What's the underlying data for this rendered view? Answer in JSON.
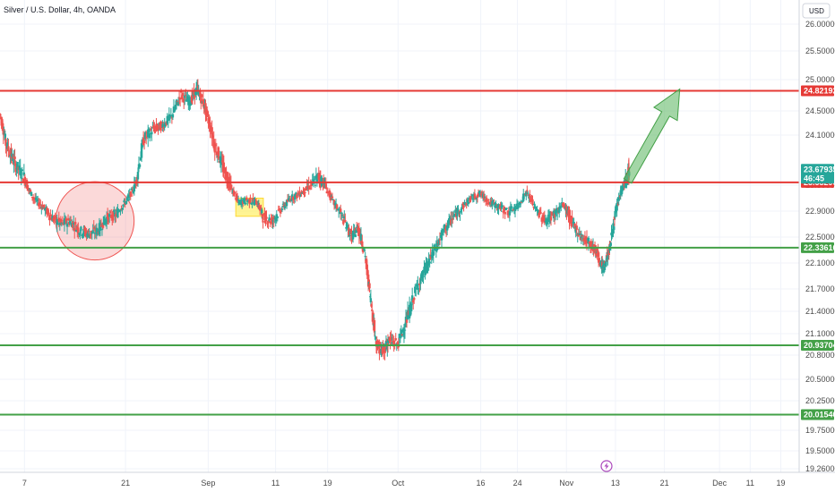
{
  "chart_data": {
    "type": "candlestick",
    "title": "Silver / U.S. Dollar, 4h, OANDA",
    "currency": "USD",
    "ylim": [
      19.1,
      26.3
    ],
    "y_ticks": [
      "26.00000",
      "25.50000",
      "25.00000",
      "24.50000",
      "24.10000",
      "23.50000",
      "22.90000",
      "22.50000",
      "22.10000",
      "21.70000",
      "21.40000",
      "21.10000",
      "20.80000",
      "20.50000",
      "20.25000",
      "19.75000",
      "19.50000",
      "19.26000"
    ],
    "y_tick_values": [
      26.0,
      25.5,
      25.0,
      24.5,
      24.1,
      23.5,
      22.9,
      22.5,
      22.1,
      21.7,
      21.4,
      21.1,
      20.8,
      20.5,
      20.25,
      19.75,
      19.5,
      19.26
    ],
    "x_ticks": [
      "7",
      "21",
      "Sep",
      "11",
      "19",
      "Oct",
      "16",
      "24",
      "Nov",
      "13",
      "21",
      "Dec",
      "11",
      "19"
    ],
    "x_tick_positions": [
      0.3,
      3.6,
      6.3,
      8.5,
      10.2,
      12.5,
      15.2,
      16.4,
      18.0,
      19.6,
      21.2,
      23.0,
      24.0,
      25.0
    ],
    "x_range": [
      -0.5,
      25.6
    ],
    "horizontal_levels": [
      {
        "value": 24.82192,
        "label": "24.82192",
        "color": "#e53935"
      },
      {
        "value": 23.53296,
        "label": "23.53296",
        "color": "#e53935"
      },
      {
        "value": 22.33616,
        "label": "22.33616",
        "color": "#43a047"
      },
      {
        "value": 20.93704,
        "label": "20.93704",
        "color": "#43a047"
      },
      {
        "value": 20.0154,
        "label": "20.01540",
        "color": "#43a047"
      }
    ],
    "last_price": {
      "value": 23.67935,
      "label": "23.67935",
      "countdown": "46:45",
      "color": "#26a69a"
    },
    "price_path": [
      [
        -0.5,
        24.45
      ],
      [
        -0.3,
        24.0
      ],
      [
        0.0,
        23.75
      ],
      [
        0.3,
        23.6
      ],
      [
        0.6,
        23.2
      ],
      [
        0.9,
        23.0
      ],
      [
        1.2,
        22.8
      ],
      [
        1.5,
        22.7
      ],
      [
        1.8,
        22.75
      ],
      [
        2.1,
        22.6
      ],
      [
        2.4,
        22.55
      ],
      [
        2.7,
        22.6
      ],
      [
        3.0,
        22.8
      ],
      [
        3.3,
        22.85
      ],
      [
        3.6,
        23.1
      ],
      [
        3.9,
        23.45
      ],
      [
        4.2,
        24.05
      ],
      [
        4.5,
        24.2
      ],
      [
        4.8,
        24.25
      ],
      [
        5.1,
        24.4
      ],
      [
        5.4,
        24.75
      ],
      [
        5.7,
        24.65
      ],
      [
        5.95,
        24.85
      ],
      [
        6.2,
        24.55
      ],
      [
        6.5,
        24.0
      ],
      [
        6.8,
        23.7
      ],
      [
        7.0,
        23.5
      ],
      [
        7.3,
        23.1
      ],
      [
        7.6,
        23.15
      ],
      [
        7.9,
        23.1
      ],
      [
        8.1,
        22.8
      ],
      [
        8.4,
        22.75
      ],
      [
        8.7,
        22.95
      ],
      [
        9.0,
        23.2
      ],
      [
        9.3,
        23.3
      ],
      [
        9.6,
        23.45
      ],
      [
        9.9,
        23.6
      ],
      [
        10.1,
        23.5
      ],
      [
        10.4,
        23.1
      ],
      [
        10.7,
        22.8
      ],
      [
        11.0,
        22.5
      ],
      [
        11.2,
        22.65
      ],
      [
        11.4,
        22.3
      ],
      [
        11.6,
        21.6
      ],
      [
        11.8,
        20.95
      ],
      [
        12.0,
        20.85
      ],
      [
        12.2,
        21.0
      ],
      [
        12.5,
        20.95
      ],
      [
        12.8,
        21.3
      ],
      [
        13.1,
        21.7
      ],
      [
        13.4,
        22.0
      ],
      [
        13.7,
        22.3
      ],
      [
        14.0,
        22.6
      ],
      [
        14.3,
        22.8
      ],
      [
        14.6,
        23.0
      ],
      [
        14.9,
        23.2
      ],
      [
        15.2,
        23.3
      ],
      [
        15.5,
        23.1
      ],
      [
        15.8,
        23.0
      ],
      [
        16.1,
        22.9
      ],
      [
        16.4,
        23.0
      ],
      [
        16.7,
        23.35
      ],
      [
        17.0,
        22.95
      ],
      [
        17.3,
        22.75
      ],
      [
        17.6,
        22.85
      ],
      [
        17.9,
        23.05
      ],
      [
        18.2,
        22.7
      ],
      [
        18.5,
        22.5
      ],
      [
        18.8,
        22.4
      ],
      [
        19.0,
        22.25
      ],
      [
        19.2,
        22.0
      ],
      [
        19.4,
        22.3
      ],
      [
        19.6,
        22.85
      ],
      [
        19.8,
        23.4
      ],
      [
        20.0,
        23.6
      ],
      [
        20.05,
        23.67935
      ]
    ],
    "candle_colors": {
      "up": "#26a69a",
      "down": "#ef5350"
    },
    "annotations": [
      {
        "type": "circle",
        "label": "consolidation zone",
        "center": [
          2.6,
          22.75
        ],
        "radius_x_units": 1.28,
        "radius_y_units": 0.85,
        "color": "#ef9a9a"
      },
      {
        "type": "rectangle",
        "label": "highlight box",
        "x": [
          7.2,
          8.1
        ],
        "y": [
          23.2,
          22.82
        ],
        "color": "#ffee58"
      },
      {
        "type": "arrow",
        "from": [
          20.0,
          23.55
        ],
        "to": [
          21.7,
          24.85
        ],
        "color": "#66bb6a"
      }
    ]
  },
  "icons": {
    "flash": "lightning-icon"
  }
}
